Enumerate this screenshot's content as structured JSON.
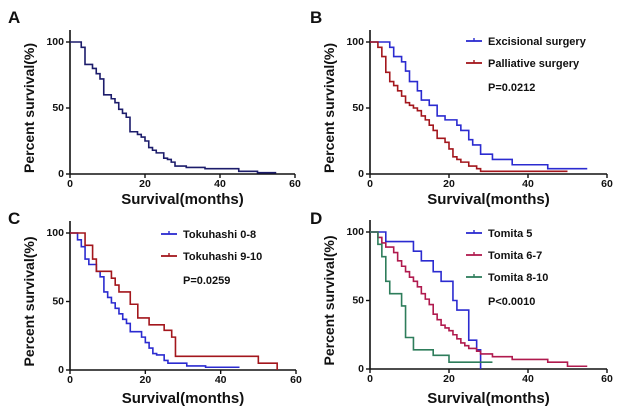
{
  "chart_data": [
    {
      "panel": "A",
      "type": "line",
      "step": true,
      "xlabel": "Survival(months)",
      "ylabel": "Percent survival(%)",
      "xlim": [
        0,
        60
      ],
      "ylim": [
        0,
        100
      ],
      "xticks": [
        "0",
        "20",
        "40",
        "60"
      ],
      "yticks": [
        "0",
        "50",
        "100"
      ],
      "grid": false,
      "legend": null,
      "annotation": "",
      "series": [
        {
          "color": "#1c1c6b",
          "end": 55,
          "steps": [
            [
              0,
              100
            ],
            [
              3,
              96
            ],
            [
              4,
              83
            ],
            [
              6,
              80
            ],
            [
              7,
              76
            ],
            [
              8,
              72
            ],
            [
              9,
              60
            ],
            [
              11,
              57
            ],
            [
              12,
              54
            ],
            [
              13,
              49
            ],
            [
              14,
              46
            ],
            [
              15,
              43
            ],
            [
              16,
              32
            ],
            [
              18,
              30
            ],
            [
              19,
              28
            ],
            [
              20,
              25
            ],
            [
              21,
              20
            ],
            [
              22,
              18
            ],
            [
              23,
              16
            ],
            [
              25,
              12
            ],
            [
              26,
              11
            ],
            [
              27,
              9
            ],
            [
              28,
              6
            ],
            [
              31,
              5
            ],
            [
              36,
              4
            ],
            [
              45,
              2
            ],
            [
              50,
              1
            ]
          ]
        }
      ]
    },
    {
      "panel": "B",
      "type": "line",
      "step": true,
      "xlabel": "Survival(months)",
      "ylabel": "Percent survival(%)",
      "xlim": [
        0,
        60
      ],
      "ylim": [
        0,
        100
      ],
      "xticks": [
        "0",
        "20",
        "40",
        "60"
      ],
      "yticks": [
        "0",
        "50",
        "100"
      ],
      "grid": false,
      "legend": "top-right",
      "annotation": "P=0.0212",
      "series": [
        {
          "name": "Excisional surgery",
          "color": "#2b2bd0",
          "end": 55,
          "steps": [
            [
              0,
              100
            ],
            [
              5,
              96
            ],
            [
              6,
              89
            ],
            [
              8,
              85
            ],
            [
              9,
              78
            ],
            [
              10,
              70
            ],
            [
              12,
              63
            ],
            [
              13,
              56
            ],
            [
              15,
              52
            ],
            [
              17,
              44
            ],
            [
              19,
              41
            ],
            [
              22,
              37
            ],
            [
              23,
              33
            ],
            [
              25,
              26
            ],
            [
              26,
              22
            ],
            [
              28,
              15
            ],
            [
              31,
              11
            ],
            [
              36,
              7
            ],
            [
              45,
              4
            ]
          ]
        },
        {
          "name": "Palliative surgery",
          "color": "#a3161c",
          "end": 50,
          "steps": [
            [
              0,
              100
            ],
            [
              2,
              96
            ],
            [
              3,
              89
            ],
            [
              4,
              77
            ],
            [
              5,
              70
            ],
            [
              6,
              67
            ],
            [
              7,
              63
            ],
            [
              8,
              59
            ],
            [
              9,
              54
            ],
            [
              10,
              52
            ],
            [
              11,
              50
            ],
            [
              12,
              48
            ],
            [
              13,
              44
            ],
            [
              14,
              41
            ],
            [
              15,
              37
            ],
            [
              16,
              33
            ],
            [
              17,
              27
            ],
            [
              19,
              24
            ],
            [
              20,
              19
            ],
            [
              21,
              13
            ],
            [
              22,
              11
            ],
            [
              23,
              9
            ],
            [
              25,
              6
            ],
            [
              27,
              4
            ],
            [
              28,
              2
            ]
          ]
        }
      ]
    },
    {
      "panel": "C",
      "type": "line",
      "step": true,
      "xlabel": "Survival(months)",
      "ylabel": "Percent survival(%)",
      "xlim": [
        0,
        60
      ],
      "ylim": [
        0,
        100
      ],
      "xticks": [
        "0",
        "20",
        "40",
        "60"
      ],
      "yticks": [
        "0",
        "50",
        "100"
      ],
      "grid": false,
      "legend": "top-right",
      "annotation": "P=0.0259",
      "series": [
        {
          "name": "Tokuhashi 0-8",
          "color": "#2b2bd0",
          "end": 45,
          "steps": [
            [
              0,
              100
            ],
            [
              2,
              95
            ],
            [
              3,
              90
            ],
            [
              4,
              81
            ],
            [
              5,
              77
            ],
            [
              7,
              72
            ],
            [
              8,
              68
            ],
            [
              9,
              57
            ],
            [
              10,
              53
            ],
            [
              11,
              49
            ],
            [
              12,
              45
            ],
            [
              13,
              41
            ],
            [
              14,
              37
            ],
            [
              15,
              34
            ],
            [
              16,
              28
            ],
            [
              19,
              24
            ],
            [
              20,
              20
            ],
            [
              21,
              16
            ],
            [
              22,
              12
            ],
            [
              23,
              11
            ],
            [
              25,
              7
            ],
            [
              26,
              5
            ],
            [
              31,
              3
            ],
            [
              36,
              2
            ]
          ]
        },
        {
          "name": "Tokuhashi 9-10",
          "color": "#a3161c",
          "end": 55,
          "steps": [
            [
              0,
              100
            ],
            [
              4,
              91
            ],
            [
              6,
              81
            ],
            [
              7,
              72
            ],
            [
              11,
              67
            ],
            [
              12,
              62
            ],
            [
              13,
              57
            ],
            [
              16,
              48
            ],
            [
              18,
              38
            ],
            [
              21,
              33
            ],
            [
              25,
              29
            ],
            [
              27,
              24
            ],
            [
              28,
              10
            ],
            [
              50,
              5
            ],
            [
              55,
              0
            ]
          ]
        }
      ]
    },
    {
      "panel": "D",
      "type": "line",
      "step": true,
      "xlabel": "Survival(months)",
      "ylabel": "Percent survival(%)",
      "xlim": [
        0,
        60
      ],
      "ylim": [
        0,
        100
      ],
      "xticks": [
        "0",
        "20",
        "40",
        "60"
      ],
      "yticks": [
        "0",
        "50",
        "100"
      ],
      "grid": false,
      "legend": "top-right",
      "annotation": "P<0.0010",
      "series": [
        {
          "name": "Tomita 5",
          "color": "#2b2bd0",
          "end": 28,
          "steps": [
            [
              0,
              100
            ],
            [
              4,
              93
            ],
            [
              11,
              86
            ],
            [
              13,
              79
            ],
            [
              16,
              71
            ],
            [
              18,
              64
            ],
            [
              21,
              50
            ],
            [
              22,
              43
            ],
            [
              25,
              21
            ],
            [
              27,
              14
            ],
            [
              28,
              0
            ]
          ]
        },
        {
          "name": "Tomita 6-7",
          "color": "#b01a4e",
          "end": 55,
          "steps": [
            [
              0,
              100
            ],
            [
              2,
              96
            ],
            [
              3,
              92
            ],
            [
              4,
              89
            ],
            [
              6,
              85
            ],
            [
              7,
              79
            ],
            [
              8,
              75
            ],
            [
              9,
              71
            ],
            [
              10,
              67
            ],
            [
              11,
              64
            ],
            [
              12,
              60
            ],
            [
              13,
              55
            ],
            [
              14,
              51
            ],
            [
              15,
              47
            ],
            [
              16,
              40
            ],
            [
              17,
              36
            ],
            [
              18,
              32
            ],
            [
              19,
              30
            ],
            [
              20,
              28
            ],
            [
              21,
              25
            ],
            [
              22,
              22
            ],
            [
              23,
              19
            ],
            [
              24,
              17
            ],
            [
              25,
              15
            ],
            [
              27,
              13
            ],
            [
              28,
              11
            ],
            [
              31,
              9
            ],
            [
              36,
              7
            ],
            [
              45,
              5
            ],
            [
              50,
              2
            ]
          ]
        },
        {
          "name": "Tomita 8-10",
          "color": "#2e7d5b",
          "end": 31,
          "steps": [
            [
              0,
              100
            ],
            [
              2,
              91
            ],
            [
              3,
              82
            ],
            [
              4,
              64
            ],
            [
              5,
              55
            ],
            [
              8,
              46
            ],
            [
              9,
              23
            ],
            [
              11,
              14
            ],
            [
              16,
              10
            ],
            [
              20,
              5
            ]
          ]
        }
      ]
    }
  ]
}
